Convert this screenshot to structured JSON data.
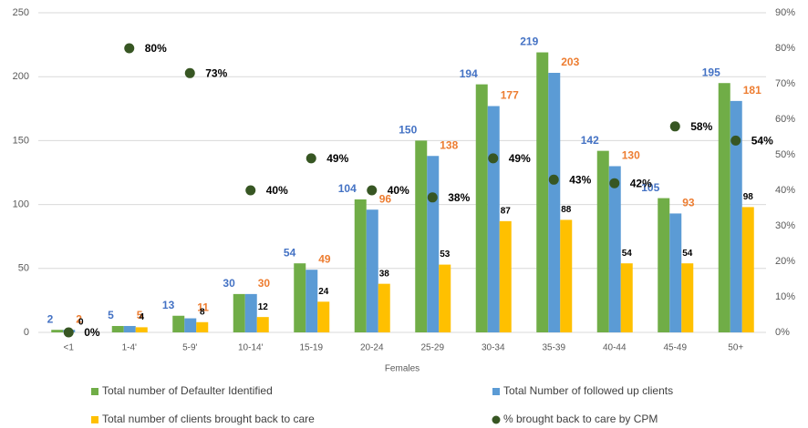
{
  "chart_data": {
    "type": "bar",
    "x_label": "Females",
    "categories": [
      "<1",
      "1-4'",
      "5-9'",
      "10-14'",
      "15-19",
      "20-24",
      "25-29",
      "30-34",
      "35-39",
      "40-44",
      "45-49",
      "50+"
    ],
    "series": [
      {
        "name": "Total number of Defaulter Identified",
        "color": "#70ad47",
        "label_color": "#4472c4",
        "values": [
          2,
          5,
          13,
          30,
          54,
          104,
          150,
          194,
          219,
          142,
          105,
          195
        ]
      },
      {
        "name": "Total Number of followed up clients",
        "color": "#5b9bd5",
        "label_color": "#ed7d31",
        "values": [
          2,
          5,
          11,
          30,
          49,
          96,
          138,
          177,
          203,
          130,
          93,
          181
        ]
      },
      {
        "name": "Total number of clients brought back to care",
        "color": "#ffc000",
        "label_color": "#000000",
        "values": [
          0,
          4,
          8,
          12,
          24,
          38,
          53,
          87,
          88,
          54,
          54,
          98
        ]
      },
      {
        "name": "% brought back to care by CPM",
        "color": "#375623",
        "label_color": "#000000",
        "type": "scatter",
        "axis": "y2",
        "values": [
          0,
          80,
          73,
          40,
          49,
          40,
          38,
          49,
          43,
          42,
          58,
          54
        ],
        "value_labels": [
          "0%",
          "80%",
          "73%",
          "40%",
          "49%",
          "40%",
          "38%",
          "49%",
          "43%",
          "42%",
          "58%",
          "54%"
        ]
      }
    ],
    "ylim": [
      0,
      250
    ],
    "yticks": [
      0,
      50,
      100,
      150,
      200,
      250
    ],
    "y2lim": [
      0,
      90
    ],
    "y2ticks": [
      {
        "value": 0,
        "label": "0%"
      },
      {
        "value": 10,
        "label": "10%"
      },
      {
        "value": 20,
        "label": "20%"
      },
      {
        "value": 30,
        "label": "30%"
      },
      {
        "value": 40,
        "label": "40%"
      },
      {
        "value": 50,
        "label": "50%"
      },
      {
        "value": 60,
        "label": "60%"
      },
      {
        "value": 70,
        "label": "70%"
      },
      {
        "value": 80,
        "label": "80%"
      },
      {
        "value": 90,
        "label": "90%"
      }
    ],
    "grid": true,
    "legend": "bottom"
  }
}
